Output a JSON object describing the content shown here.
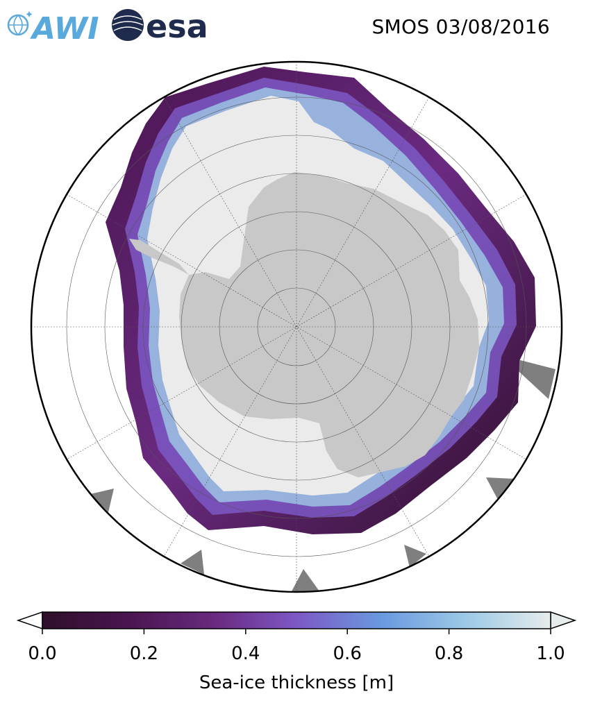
{
  "header": {
    "logo_awi": "AWI",
    "logo_esa": "esa",
    "title": "SMOS 03/08/2016"
  },
  "map": {
    "projection": "south-polar-stereographic",
    "background_land_color": "#c8c8c8",
    "ice_color_background": "#ebebeb",
    "mask_color": "#7f7f7f",
    "grid": true
  },
  "colorbar": {
    "label": "Sea-ice thickness [m]",
    "ticks": [
      "0.0",
      "0.2",
      "0.4",
      "0.6",
      "0.8",
      "1.0"
    ],
    "range": [
      0,
      1
    ],
    "extend": "both",
    "colormap": [
      "#2e0f2a",
      "#4a1550",
      "#6a2a80",
      "#7d58c6",
      "#6a9ae0",
      "#9fcbe6",
      "#e6ecec"
    ]
  }
}
